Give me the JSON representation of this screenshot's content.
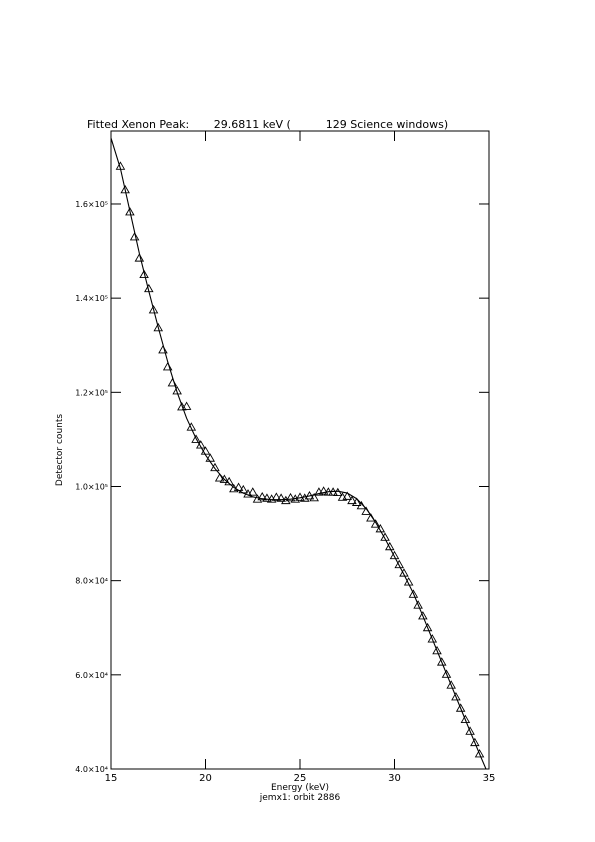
{
  "chart_data": {
    "type": "scatter",
    "title": "Fitted Xenon Peak:       29.6811 keV (          129 Science windows)",
    "x_label": "Energy (keV)",
    "subtitle": "jemx1: orbit 2886",
    "y_label": "Detector counts",
    "xlim": [
      15,
      35
    ],
    "xticks": [
      15,
      20,
      25,
      30,
      35
    ],
    "ylim": [
      40000,
      175500
    ],
    "yticks": [
      {
        "value": 40000,
        "label": "4.0×10⁴"
      },
      {
        "value": 60000,
        "label": "6.0×10⁴"
      },
      {
        "value": 80000,
        "label": "8.0×10⁴"
      },
      {
        "value": 100000,
        "label": "1.0×10⁵"
      },
      {
        "value": 120000,
        "label": "1.2×10⁵"
      },
      {
        "value": 140000,
        "label": "1.4×10⁵"
      },
      {
        "value": 160000,
        "label": "1.6×10⁵"
      }
    ],
    "series": [
      {
        "type": "scatter",
        "marker": "triangle",
        "color": "#000000",
        "x": [
          15.5,
          15.75,
          16,
          16.25,
          16.5,
          16.75,
          17,
          17.25,
          17.5,
          17.75,
          18,
          18.25,
          18.5,
          18.75,
          19,
          19.25,
          19.5,
          19.75,
          20,
          20.25,
          20.5,
          20.75,
          21,
          21.25,
          21.5,
          21.75,
          22,
          22.25,
          22.5,
          22.75,
          23,
          23.25,
          23.5,
          23.75,
          24,
          24.25,
          24.5,
          24.75,
          25,
          25.25,
          25.5,
          25.75,
          26,
          26.25,
          26.5,
          26.75,
          27,
          27.25,
          27.5,
          27.75,
          28,
          28.25,
          28.5,
          28.75,
          29,
          29.25,
          29.5,
          29.75,
          30,
          30.25,
          30.5,
          30.75,
          31,
          31.25,
          31.5,
          31.75,
          32,
          32.25,
          32.5,
          32.75,
          33,
          33.25,
          33.5,
          33.75,
          34,
          34.25,
          34.5
        ],
        "values": [
          168000,
          163000,
          158300,
          153000,
          148500,
          145000,
          142000,
          137500,
          133700,
          129000,
          125400,
          122000,
          120300,
          116900,
          117000,
          112600,
          110000,
          108800,
          107500,
          106000,
          104000,
          101800,
          101500,
          101000,
          99500,
          99800,
          99300,
          98400,
          98800,
          97300,
          97800,
          97500,
          97300,
          97700,
          97500,
          97000,
          97600,
          97300,
          97700,
          97500,
          98000,
          97600,
          98800,
          99000,
          98800,
          98800,
          98700,
          97700,
          97900,
          97000,
          96600,
          95900,
          94700,
          93300,
          92000,
          91000,
          89200,
          87200,
          85300,
          83400,
          81600,
          79700,
          77100,
          74800,
          72500,
          70000,
          67600,
          65100,
          62700,
          60100,
          57800,
          55300,
          52900,
          50500,
          48000,
          45600,
          43200
        ]
      },
      {
        "type": "line",
        "color": "#000000",
        "x": [
          15,
          15.5,
          16,
          16.5,
          17,
          17.5,
          18,
          18.5,
          19,
          19.5,
          20,
          20.5,
          21,
          21.5,
          22,
          22.5,
          23,
          23.5,
          24,
          24.5,
          25,
          25.5,
          26,
          26.5,
          27,
          27.5,
          28,
          28.5,
          29,
          29.5,
          30,
          30.5,
          31,
          31.5,
          32,
          32.5,
          33,
          33.5,
          34,
          34.5,
          35
        ],
        "values": [
          174000,
          167500,
          158500,
          149500,
          141500,
          133800,
          126500,
          120000,
          114500,
          110200,
          106700,
          103800,
          101500,
          99800,
          98600,
          97800,
          97400,
          97200,
          97200,
          97300,
          97600,
          98000,
          98500,
          98900,
          99000,
          98600,
          97400,
          95300,
          92400,
          88900,
          85100,
          81300,
          77300,
          72500,
          67600,
          62700,
          57800,
          52900,
          48000,
          43200,
          38500
        ]
      }
    ]
  }
}
